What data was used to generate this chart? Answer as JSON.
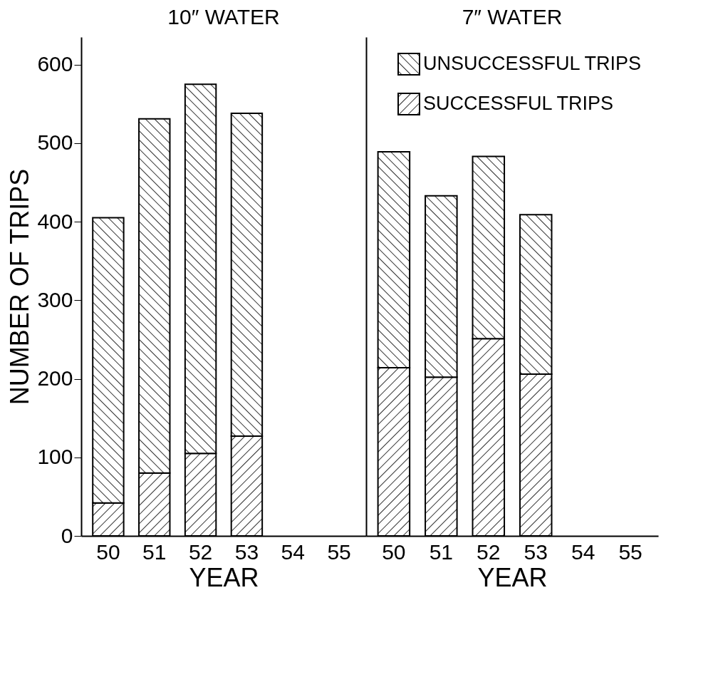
{
  "chart_data": [
    {
      "type": "bar",
      "title": "10″ WATER",
      "xlabel": "YEAR",
      "ylabel": "NUMBER OF TRIPS",
      "categories": [
        "50",
        "51",
        "52",
        "53",
        "54",
        "55"
      ],
      "stacked": true,
      "ylim": [
        0,
        635
      ],
      "yticks": [
        0,
        100,
        200,
        300,
        400,
        500,
        600
      ],
      "series": [
        {
          "color": "#000000",
          "values": [
            42,
            80,
            105,
            127,
            null,
            null
          ]
        },
        {
          "color": "#000000",
          "values": [
            363,
            451,
            470,
            411,
            null,
            null
          ]
        }
      ]
    },
    {
      "type": "bar",
      "title": "7″ WATER",
      "xlabel": "YEAR",
      "categories": [
        "50",
        "51",
        "52",
        "53",
        "54",
        "55"
      ],
      "stacked": true,
      "ylim": [
        0,
        635
      ],
      "yticks": [
        0,
        100,
        200,
        300,
        400,
        500,
        600
      ],
      "tick_labels": "x",
      "legend": "top right",
      "series": [
        {
          "name": "SUCCESSFUL TRIPS",
          "color": "#000000",
          "values": [
            214,
            202,
            251,
            206,
            null,
            null
          ]
        },
        {
          "name": "UNSUCCESSFUL TRIPS",
          "color": "#000000",
          "values": [
            275,
            231,
            232,
            203,
            null,
            null
          ]
        }
      ]
    }
  ]
}
